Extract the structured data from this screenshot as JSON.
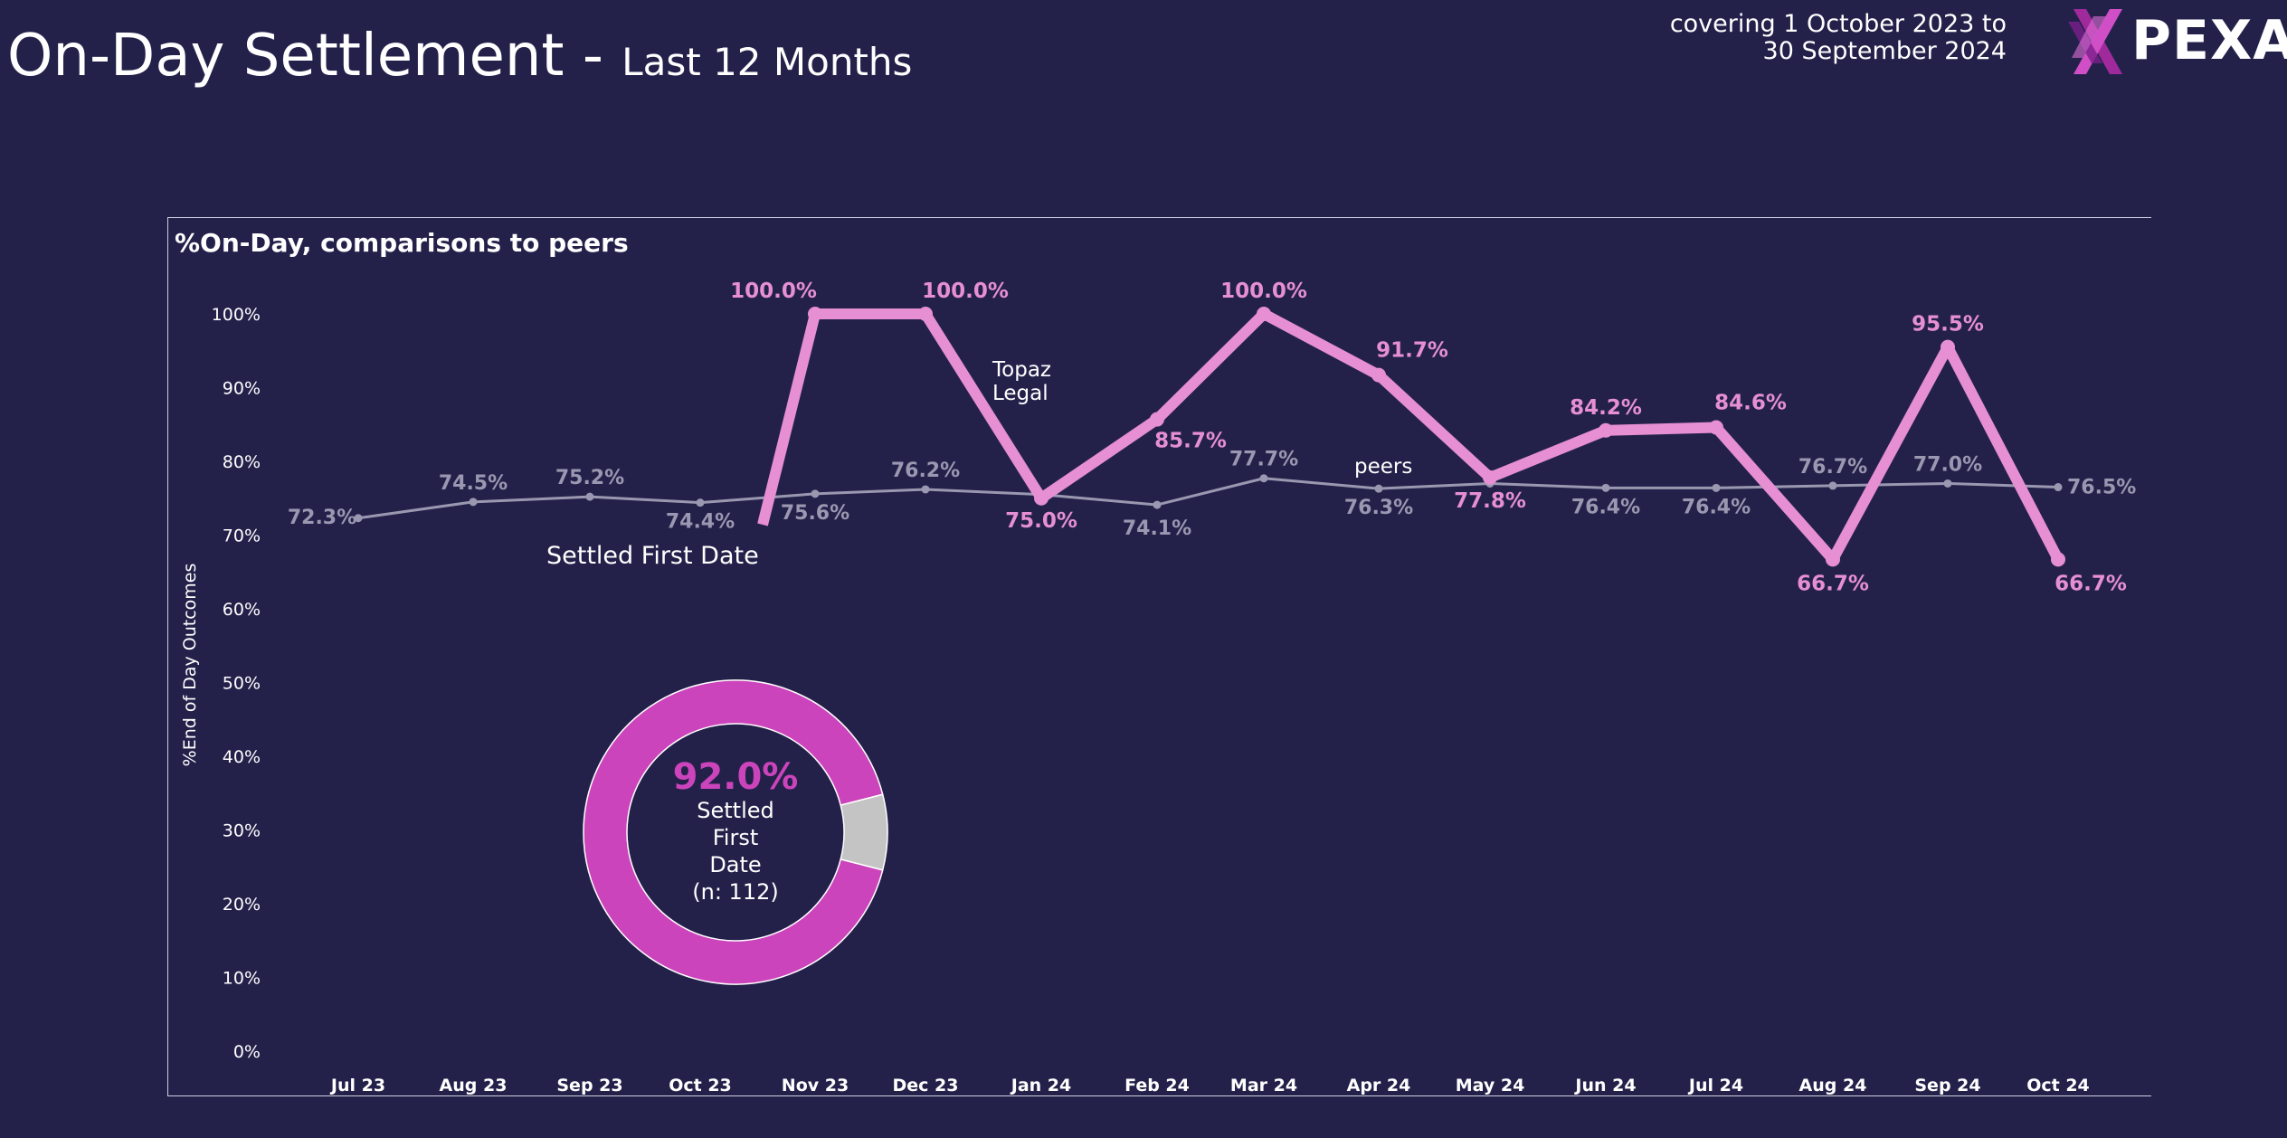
{
  "header": {
    "title": "On-Day Settlement -",
    "subtitle": "Last 12 Months",
    "coverage_line1": "covering 1 October 2023 to",
    "coverage_line2": "30 September 2024",
    "logo_text": "PEXA"
  },
  "colors": {
    "background": "#23214a",
    "firm": "#e68fd2",
    "peers": "#9a98b0",
    "donut_primary": "#cc44bb",
    "donut_remainder": "#c4c4c4",
    "donut_value_text": "#cc44bb"
  },
  "chart_data": [
    {
      "type": "line",
      "title": "%On-Day, comparisons to peers",
      "ylabel": "%End of Day Outcomes",
      "xlabel": "",
      "ylim": [
        0,
        100
      ],
      "yticks": [
        "0%",
        "10%",
        "20%",
        "30%",
        "40%",
        "50%",
        "60%",
        "70%",
        "80%",
        "90%",
        "100%"
      ],
      "categories": [
        "Jul 23",
        "Aug 23",
        "Sep 23",
        "Oct 23",
        "Nov 23",
        "Dec 23",
        "Jan 24",
        "Feb 24",
        "Mar 24",
        "Apr 24",
        "May 24",
        "Jun 24",
        "Jul 24",
        "Aug 24",
        "Sep 24",
        "Oct 24"
      ],
      "grid": false,
      "series": [
        {
          "name": "peers",
          "values": [
            72.3,
            74.5,
            75.2,
            74.4,
            75.6,
            76.2,
            75.5,
            74.1,
            77.7,
            76.3,
            77.0,
            76.4,
            76.4,
            76.7,
            77.0,
            76.5
          ],
          "labels": [
            "72.3%",
            "74.5%",
            "75.2%",
            "74.4%",
            "75.6%",
            "76.2%",
            "",
            "74.1%",
            "77.7%",
            "76.3%",
            "",
            "76.4%",
            "76.4%",
            "76.7%",
            "77.0%",
            "76.5%"
          ]
        },
        {
          "name": "Topaz Legal",
          "values": [
            null,
            null,
            null,
            null,
            100.0,
            100.0,
            75.0,
            85.7,
            100.0,
            91.7,
            77.8,
            84.2,
            84.6,
            66.7,
            95.5,
            66.7
          ],
          "labels": [
            "",
            "",
            "",
            "",
            "100.0%",
            "100.0%",
            "75.0%",
            "85.7%",
            "100.0%",
            "91.7%",
            "77.8%",
            "84.2%",
            "84.6%",
            "66.7%",
            "95.5%",
            "66.7%"
          ]
        }
      ],
      "annotations": {
        "firm_name_line1": "Topaz",
        "firm_name_line2": "Legal",
        "peers_label": "peers",
        "series_caption": "Settled First Date"
      }
    },
    {
      "type": "pie",
      "values": [
        92.0,
        8.0
      ],
      "center_value": "92.0%",
      "center_line1": "Settled",
      "center_line2": "First",
      "center_line3": "Date",
      "center_line4": "(n: 112)"
    }
  ]
}
